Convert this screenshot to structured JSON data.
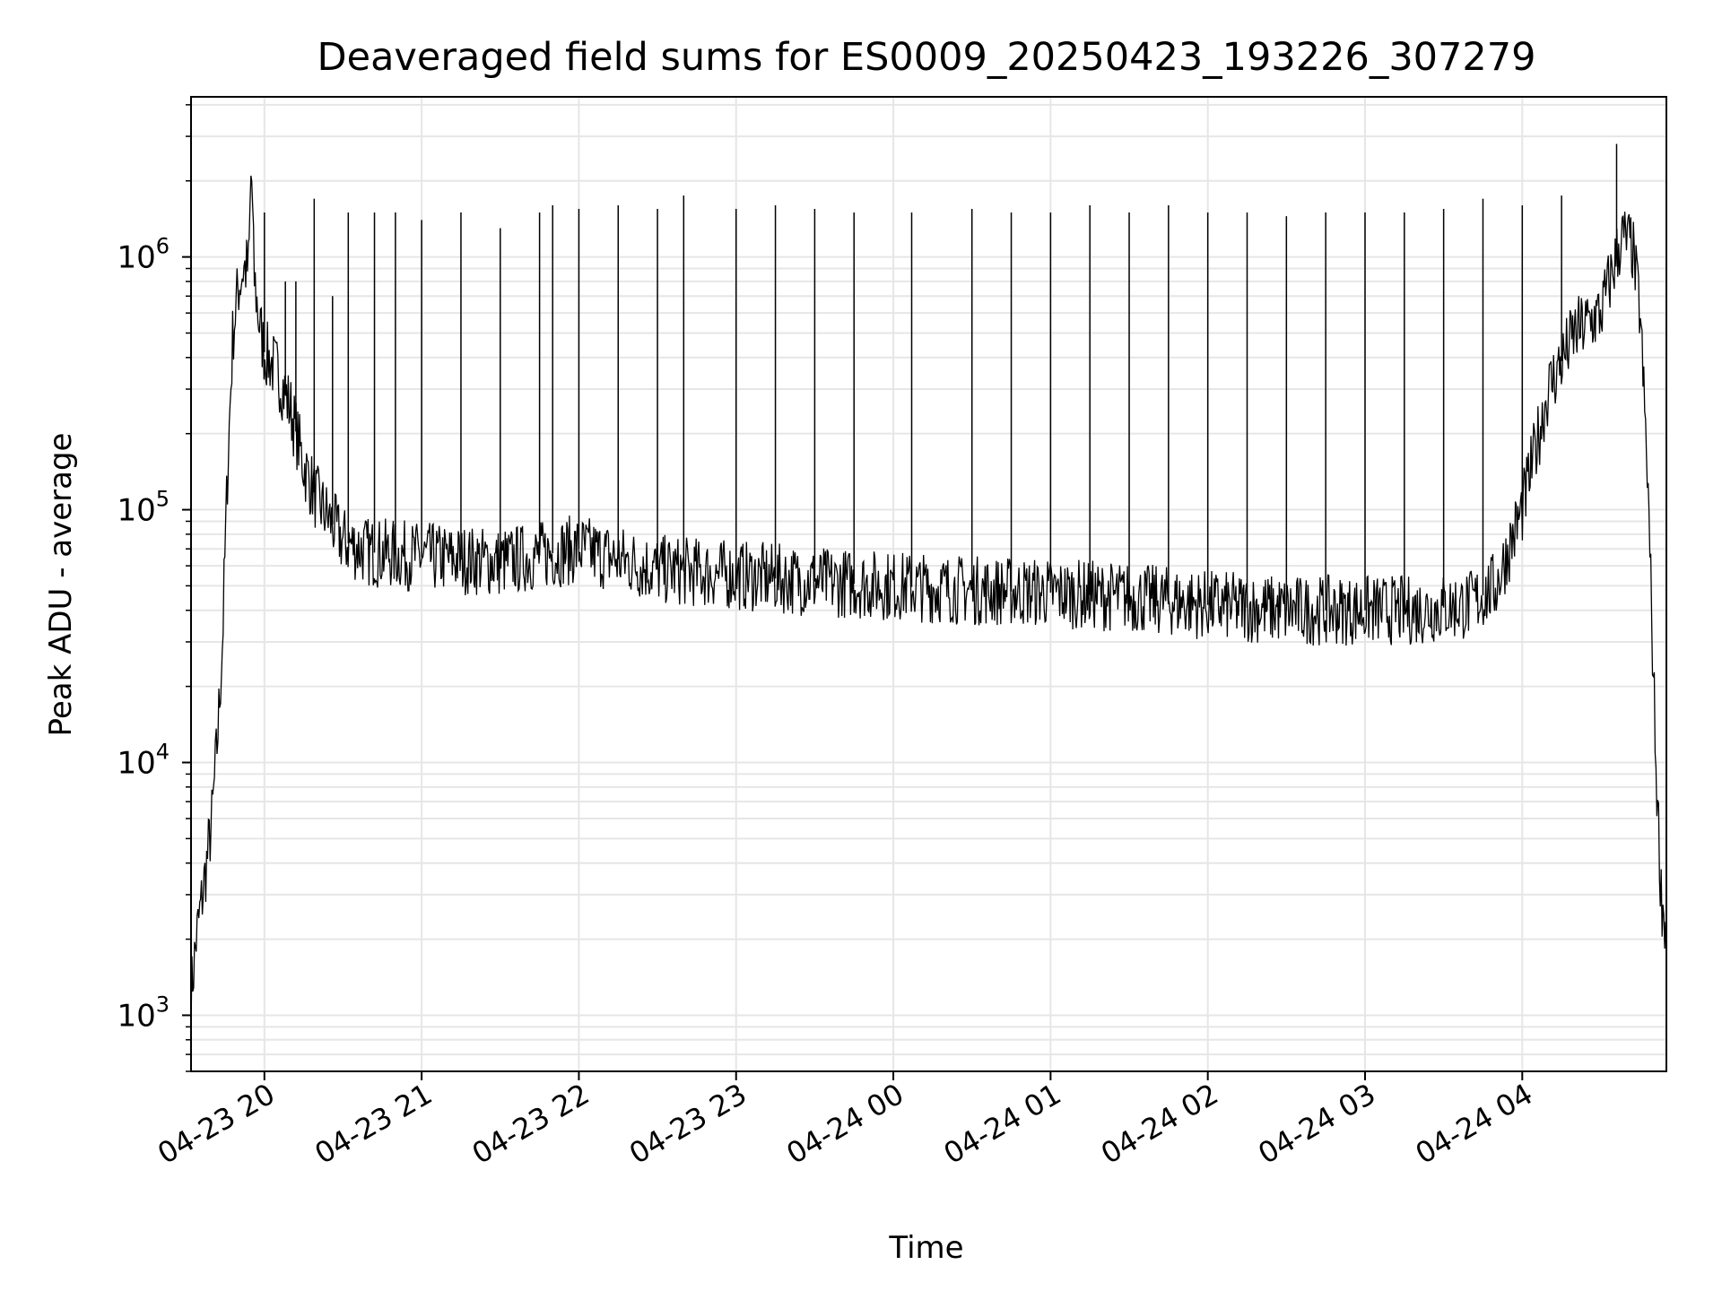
{
  "chart_data": {
    "type": "line",
    "title": "Deaveraged field sums for ES0009_20250423_193226_307279",
    "xlabel": "Time",
    "ylabel": "Peak ADU - average",
    "y_scale": "log",
    "ylim": [
      600,
      4300000
    ],
    "xlim": [
      "2025-04-23 19:32",
      "2025-04-24 04:55"
    ],
    "grid": true,
    "legend": "none",
    "line_color": "#000000",
    "grid_color": "#e6e6e6",
    "x_ticks": [
      {
        "value": "2025-04-23 20:00",
        "label": "04-23 20"
      },
      {
        "value": "2025-04-23 21:00",
        "label": "04-23 21"
      },
      {
        "value": "2025-04-23 22:00",
        "label": "04-23 22"
      },
      {
        "value": "2025-04-23 23:00",
        "label": "04-23 23"
      },
      {
        "value": "2025-04-24 00:00",
        "label": "04-24 00"
      },
      {
        "value": "2025-04-24 01:00",
        "label": "04-24 01"
      },
      {
        "value": "2025-04-24 02:00",
        "label": "04-24 02"
      },
      {
        "value": "2025-04-24 03:00",
        "label": "04-24 03"
      },
      {
        "value": "2025-04-24 04:00",
        "label": "04-24 04"
      }
    ],
    "y_ticks": [
      {
        "value": 1000,
        "base": "10",
        "exp": "3"
      },
      {
        "value": 10000,
        "base": "10",
        "exp": "4"
      },
      {
        "value": 100000,
        "base": "10",
        "exp": "5"
      },
      {
        "value": 1000000,
        "base": "10",
        "exp": "6"
      }
    ],
    "series": [
      {
        "x": [
          "2025-04-23 19:32",
          "2025-04-23 19:34",
          "2025-04-23 19:36",
          "2025-04-23 19:38",
          "2025-04-23 19:40",
          "2025-04-23 19:42",
          "2025-04-23 19:44",
          "2025-04-23 19:46",
          "2025-04-23 19:48",
          "2025-04-23 19:50",
          "2025-04-23 19:52",
          "2025-04-23 19:54",
          "2025-04-23 19:55",
          "2025-04-23 19:56",
          "2025-04-23 19:58",
          "2025-04-23 20:00",
          "2025-04-23 20:05",
          "2025-04-23 20:10",
          "2025-04-23 20:15",
          "2025-04-23 20:20",
          "2025-04-23 20:30",
          "2025-04-23 20:40",
          "2025-04-23 21:00",
          "2025-04-23 21:30",
          "2025-04-23 22:00",
          "2025-04-23 22:30",
          "2025-04-23 23:00",
          "2025-04-23 23:30",
          "2025-04-24 00:00",
          "2025-04-24 00:30",
          "2025-04-24 01:00",
          "2025-04-24 01:30",
          "2025-04-24 02:00",
          "2025-04-24 02:30",
          "2025-04-24 03:00",
          "2025-04-24 03:20",
          "2025-04-24 03:40",
          "2025-04-24 03:50",
          "2025-04-24 04:00",
          "2025-04-24 04:10",
          "2025-04-24 04:20",
          "2025-04-24 04:30",
          "2025-04-24 04:38",
          "2025-04-24 04:42",
          "2025-04-24 04:45",
          "2025-04-24 04:48",
          "2025-04-24 04:51",
          "2025-04-24 04:53",
          "2025-04-24 04:55"
        ],
        "y": [
          1200,
          2000,
          2800,
          4000,
          6000,
          12000,
          30000,
          150000,
          500000,
          750000,
          900000,
          900000,
          2400000,
          850000,
          550000,
          420000,
          350000,
          250000,
          150000,
          110000,
          75000,
          68000,
          65000,
          62000,
          70000,
          58000,
          55000,
          52000,
          50000,
          48000,
          47000,
          45000,
          42000,
          40000,
          40000,
          40000,
          42000,
          50000,
          100000,
          300000,
          500000,
          600000,
          1200000,
          1100000,
          600000,
          120000,
          10000,
          3000,
          2100
        ],
        "spikes": [
          {
            "x": "2025-04-23 19:55",
            "y": 2400000
          },
          {
            "x": "2025-04-23 20:00",
            "y": 1500000
          },
          {
            "x": "2025-04-23 20:08",
            "y": 800000
          },
          {
            "x": "2025-04-23 20:12",
            "y": 800000
          },
          {
            "x": "2025-04-23 20:19",
            "y": 1700000
          },
          {
            "x": "2025-04-23 20:26",
            "y": 700000
          },
          {
            "x": "2025-04-23 20:32",
            "y": 1500000
          },
          {
            "x": "2025-04-23 20:42",
            "y": 1500000
          },
          {
            "x": "2025-04-23 20:50",
            "y": 1500000
          },
          {
            "x": "2025-04-23 21:00",
            "y": 1400000
          },
          {
            "x": "2025-04-23 21:15",
            "y": 1500000
          },
          {
            "x": "2025-04-23 21:30",
            "y": 1300000
          },
          {
            "x": "2025-04-23 21:45",
            "y": 1500000
          },
          {
            "x": "2025-04-23 21:50",
            "y": 1600000
          },
          {
            "x": "2025-04-23 22:00",
            "y": 1550000
          },
          {
            "x": "2025-04-23 22:15",
            "y": 1600000
          },
          {
            "x": "2025-04-23 22:30",
            "y": 1550000
          },
          {
            "x": "2025-04-23 22:40",
            "y": 1750000
          },
          {
            "x": "2025-04-23 23:00",
            "y": 1550000
          },
          {
            "x": "2025-04-23 23:15",
            "y": 1600000
          },
          {
            "x": "2025-04-23 23:30",
            "y": 1550000
          },
          {
            "x": "2025-04-23 23:45",
            "y": 1500000
          },
          {
            "x": "2025-04-24 00:07",
            "y": 1500000
          },
          {
            "x": "2025-04-24 00:30",
            "y": 1550000
          },
          {
            "x": "2025-04-24 00:45",
            "y": 1500000
          },
          {
            "x": "2025-04-24 01:00",
            "y": 1500000
          },
          {
            "x": "2025-04-24 01:15",
            "y": 1600000
          },
          {
            "x": "2025-04-24 01:30",
            "y": 1500000
          },
          {
            "x": "2025-04-24 01:45",
            "y": 1600000
          },
          {
            "x": "2025-04-24 02:00",
            "y": 1500000
          },
          {
            "x": "2025-04-24 02:15",
            "y": 1500000
          },
          {
            "x": "2025-04-24 02:30",
            "y": 1450000
          },
          {
            "x": "2025-04-24 02:45",
            "y": 1500000
          },
          {
            "x": "2025-04-24 03:00",
            "y": 1500000
          },
          {
            "x": "2025-04-24 03:15",
            "y": 1500000
          },
          {
            "x": "2025-04-24 03:30",
            "y": 1550000
          },
          {
            "x": "2025-04-24 03:45",
            "y": 1700000
          },
          {
            "x": "2025-04-24 04:00",
            "y": 1600000
          },
          {
            "x": "2025-04-24 04:15",
            "y": 1750000
          },
          {
            "x": "2025-04-24 04:36",
            "y": 2800000
          }
        ]
      }
    ]
  }
}
